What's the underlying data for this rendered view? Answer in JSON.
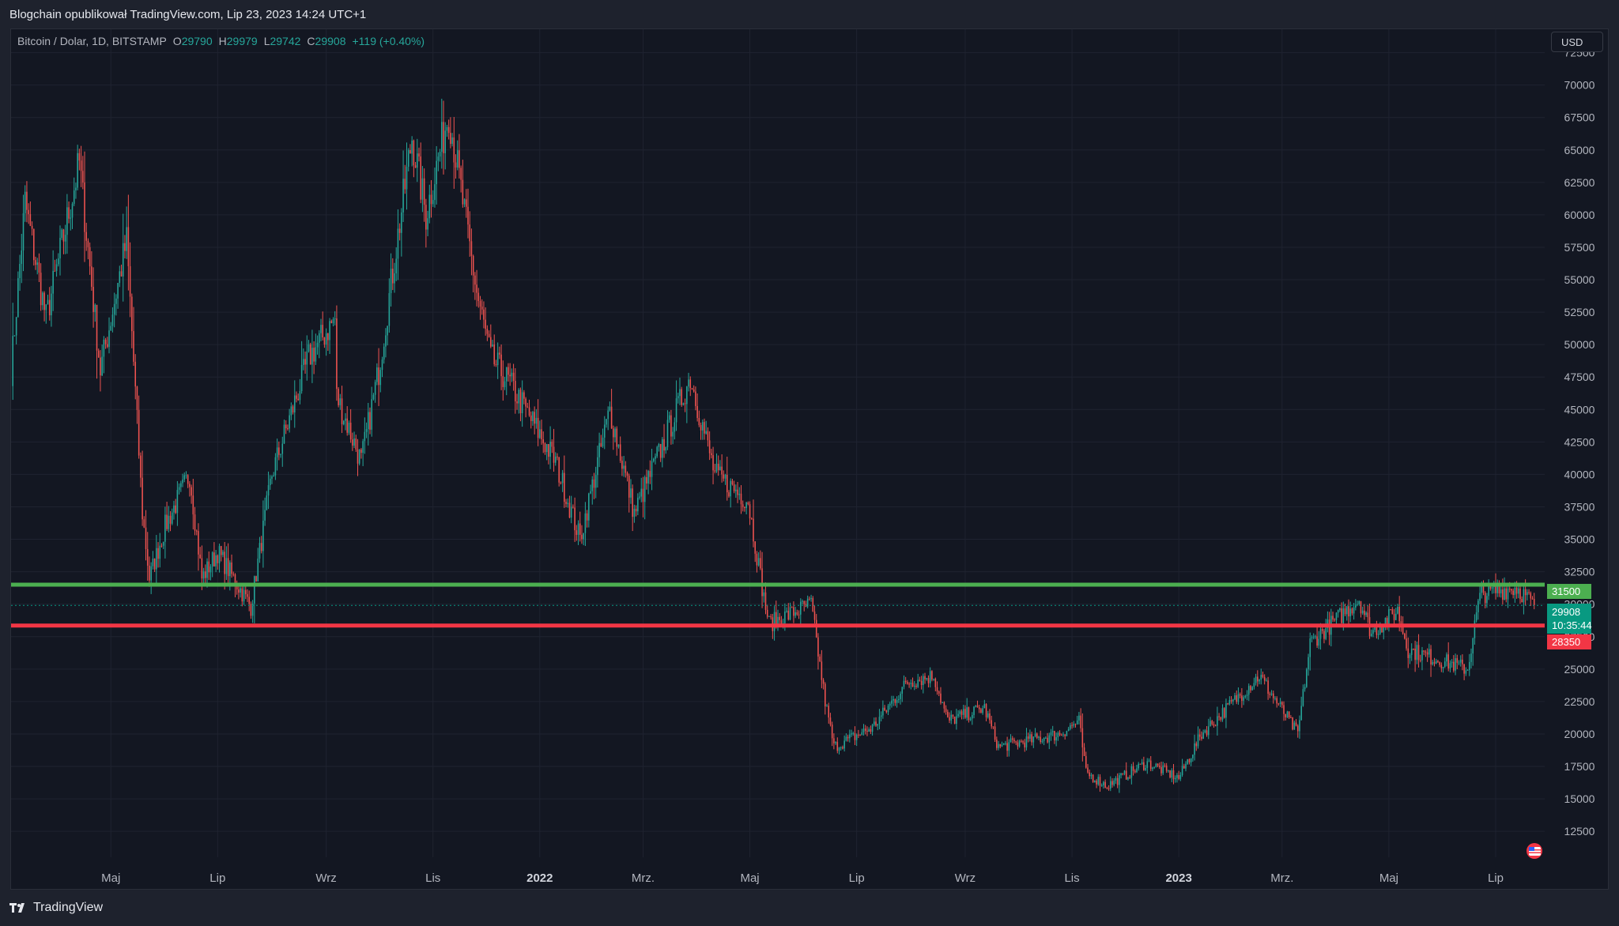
{
  "header": {
    "credit": "Blogchain opublikował TradingView.com, Lip 23, 2023 14:24 UTC+1"
  },
  "legend": {
    "symbol": "Bitcoin / Dolar, 1D, BITSTAMP",
    "open_label": "O",
    "open": "29790",
    "high_label": "H",
    "high": "29979",
    "low_label": "L",
    "low": "29742",
    "close_label": "C",
    "close": "29908",
    "change": "+119 (+0.40%)"
  },
  "currency_button": "USD",
  "footer": {
    "brand": "TradingView"
  },
  "price_tags": {
    "resistance": "31500",
    "current": "29908",
    "countdown": "10:35:44",
    "support": "28350"
  },
  "colors": {
    "up": "#26a69a",
    "down": "#ef5350",
    "resistance_line": "#4caf50",
    "support_line": "#f23645",
    "current_tag": "#089981",
    "background": "#131722",
    "grid": "#1f2330"
  },
  "icons": {
    "logo": "tradingview-logo-icon",
    "flag": "us-flag-icon"
  },
  "chart_data": {
    "type": "candlestick",
    "title": "",
    "y_ticks": [
      12500,
      15000,
      17500,
      20000,
      22500,
      25000,
      27500,
      30000,
      32500,
      35000,
      37500,
      40000,
      42500,
      45000,
      47500,
      50000,
      52500,
      55000,
      57500,
      60000,
      62500,
      65000,
      67500,
      70000,
      72500
    ],
    "y_tick_labels": [
      "12500",
      "15000",
      "17500",
      "20000",
      "22500",
      "25000",
      "27500",
      "30000",
      "32500",
      "35000",
      "37500",
      "40000",
      "42500",
      "45000",
      "47500",
      "50000",
      "52500",
      "55000",
      "57500",
      "60000",
      "62500",
      "65000",
      "67500",
      "70000",
      "72500"
    ],
    "ylim": [
      10500,
      74300
    ],
    "x_range": [
      "2021-03-05",
      "2023-07-29"
    ],
    "x_ticks": [
      {
        "date": "2021-05-01",
        "label": "Maj",
        "bold": false
      },
      {
        "date": "2021-07-01",
        "label": "Lip",
        "bold": false
      },
      {
        "date": "2021-09-01",
        "label": "Wrz",
        "bold": false
      },
      {
        "date": "2021-11-01",
        "label": "Lis",
        "bold": false
      },
      {
        "date": "2022-01-01",
        "label": "2022",
        "bold": true
      },
      {
        "date": "2022-03-01",
        "label": "Mrz.",
        "bold": false
      },
      {
        "date": "2022-05-01",
        "label": "Maj",
        "bold": false
      },
      {
        "date": "2022-07-01",
        "label": "Lip",
        "bold": false
      },
      {
        "date": "2022-09-01",
        "label": "Wrz",
        "bold": false
      },
      {
        "date": "2022-11-01",
        "label": "Lis",
        "bold": false
      },
      {
        "date": "2023-01-01",
        "label": "2023",
        "bold": true
      },
      {
        "date": "2023-03-01",
        "label": "Mrz.",
        "bold": false
      },
      {
        "date": "2023-05-01",
        "label": "Maj",
        "bold": false
      },
      {
        "date": "2023-07-01",
        "label": "Lip",
        "bold": false
      }
    ],
    "horizontal_lines": [
      {
        "name": "resistance",
        "value": 31500,
        "color": "#4caf50"
      },
      {
        "name": "support",
        "value": 28350,
        "color": "#f23645"
      }
    ],
    "current_price": 29908,
    "price_path": [
      [
        "2021-03-05",
        48000
      ],
      [
        "2021-03-13",
        61000
      ],
      [
        "2021-03-25",
        52000
      ],
      [
        "2021-04-13",
        64000
      ],
      [
        "2021-04-25",
        48000
      ],
      [
        "2021-05-10",
        58000
      ],
      [
        "2021-05-19",
        37000
      ],
      [
        "2021-05-23",
        32000
      ],
      [
        "2021-06-01",
        36000
      ],
      [
        "2021-06-15",
        40000
      ],
      [
        "2021-06-22",
        32000
      ],
      [
        "2021-07-01",
        34000
      ],
      [
        "2021-07-20",
        29800
      ],
      [
        "2021-08-01",
        40000
      ],
      [
        "2021-08-22",
        49000
      ],
      [
        "2021-09-06",
        52000
      ],
      [
        "2021-09-07",
        46000
      ],
      [
        "2021-09-21",
        41000
      ],
      [
        "2021-10-01",
        48000
      ],
      [
        "2021-10-20",
        66000
      ],
      [
        "2021-10-28",
        60000
      ],
      [
        "2021-11-10",
        68000
      ],
      [
        "2021-11-26",
        54000
      ],
      [
        "2021-12-04",
        49000
      ],
      [
        "2021-12-15",
        47000
      ],
      [
        "2022-01-10",
        41000
      ],
      [
        "2022-01-24",
        35000
      ],
      [
        "2022-02-10",
        45000
      ],
      [
        "2022-02-24",
        37000
      ],
      [
        "2022-03-28",
        47500
      ],
      [
        "2022-04-11",
        40000
      ],
      [
        "2022-04-30",
        38000
      ],
      [
        "2022-05-09",
        30500
      ],
      [
        "2022-05-12",
        28500
      ],
      [
        "2022-06-05",
        30000
      ],
      [
        "2022-06-13",
        22500
      ],
      [
        "2022-06-18",
        19000
      ],
      [
        "2022-07-10",
        20500
      ],
      [
        "2022-07-30",
        24000
      ],
      [
        "2022-08-14",
        24500
      ],
      [
        "2022-08-22",
        21000
      ],
      [
        "2022-09-12",
        22000
      ],
      [
        "2022-09-20",
        19000
      ],
      [
        "2022-10-25",
        20000
      ],
      [
        "2022-11-05",
        21000
      ],
      [
        "2022-11-09",
        17000
      ],
      [
        "2022-11-21",
        16000
      ],
      [
        "2022-12-14",
        17800
      ],
      [
        "2023-01-01",
        16600
      ],
      [
        "2023-01-14",
        20000
      ],
      [
        "2023-02-16",
        24500
      ],
      [
        "2023-03-10",
        20000
      ],
      [
        "2023-03-17",
        27000
      ],
      [
        "2023-04-14",
        30400
      ],
      [
        "2023-04-21",
        27800
      ],
      [
        "2023-05-06",
        29500
      ],
      [
        "2023-05-12",
        26500
      ],
      [
        "2023-06-15",
        25000
      ],
      [
        "2023-06-21",
        30000
      ],
      [
        "2023-06-23",
        30800
      ],
      [
        "2023-07-13",
        31300
      ],
      [
        "2023-07-23",
        29908
      ]
    ],
    "seed": 7
  }
}
